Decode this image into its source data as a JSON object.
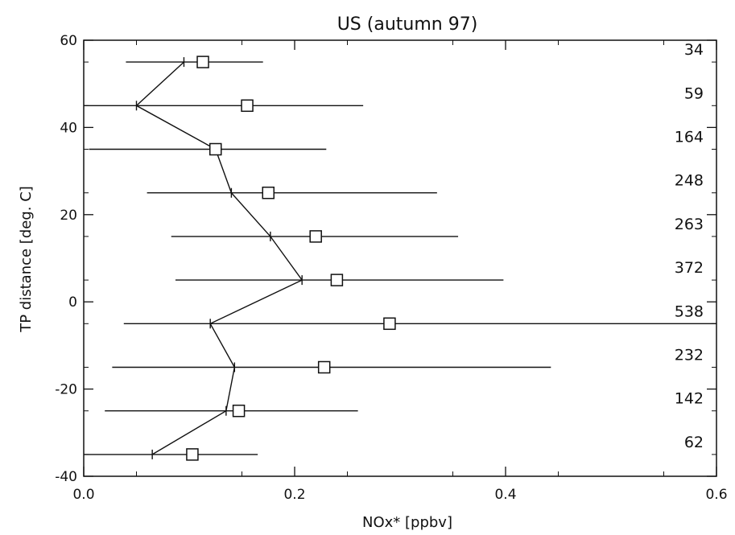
{
  "chart_data": {
    "type": "scatter",
    "title": "US (autumn 97)",
    "xlabel": "NOx* [ppbv]",
    "ylabel": "TP distance [deg. C]",
    "xlim": [
      0.0,
      0.6
    ],
    "ylim": [
      -40,
      60
    ],
    "xticks": [
      0.0,
      0.2,
      0.4,
      0.6
    ],
    "xtick_labels": [
      "0.0",
      "0.2",
      "0.4",
      "0.6"
    ],
    "yticks": [
      -40,
      -20,
      0,
      20,
      40,
      60
    ],
    "ytick_labels": [
      "-40",
      "-20",
      "0",
      "20",
      "40",
      "60"
    ],
    "grid": false,
    "bins": [
      {
        "y": 55,
        "mean": 0.113,
        "median": 0.095,
        "low": 0.04,
        "high": 0.17,
        "count": "34"
      },
      {
        "y": 45,
        "mean": 0.155,
        "median": 0.05,
        "low": 0.0,
        "high": 0.265,
        "count": "59"
      },
      {
        "y": 35,
        "mean": 0.125,
        "median": 0.125,
        "low": 0.005,
        "high": 0.23,
        "count": "164"
      },
      {
        "y": 25,
        "mean": 0.175,
        "median": 0.14,
        "low": 0.06,
        "high": 0.335,
        "count": "248"
      },
      {
        "y": 15,
        "mean": 0.22,
        "median": 0.177,
        "low": 0.083,
        "high": 0.355,
        "count": "263"
      },
      {
        "y": 5,
        "mean": 0.24,
        "median": 0.207,
        "low": 0.087,
        "high": 0.398,
        "count": "372"
      },
      {
        "y": -5,
        "mean": 0.29,
        "median": 0.12,
        "low": 0.038,
        "high": 0.6,
        "count": "538"
      },
      {
        "y": -15,
        "mean": 0.228,
        "median": 0.143,
        "low": 0.027,
        "high": 0.443,
        "count": "232"
      },
      {
        "y": -25,
        "mean": 0.147,
        "median": 0.135,
        "low": 0.02,
        "high": 0.26,
        "count": "142"
      },
      {
        "y": -35,
        "mean": 0.103,
        "median": 0.065,
        "low": 0.0,
        "high": 0.165,
        "count": "62"
      }
    ]
  }
}
